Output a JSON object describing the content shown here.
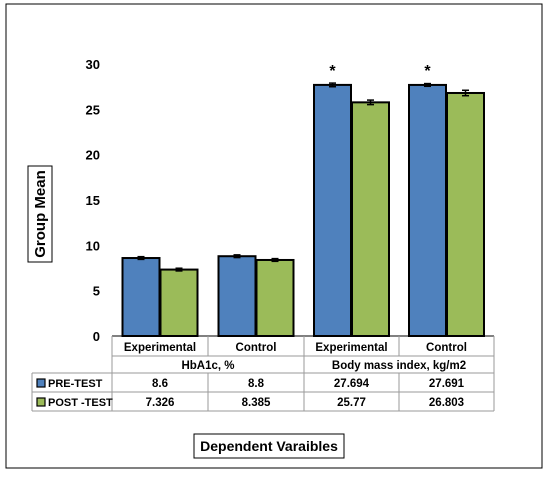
{
  "chart_data": {
    "type": "bar",
    "ylabel": "Group Mean",
    "xlabel": "Dependent Varaibles",
    "ylim": [
      0,
      30
    ],
    "yticks": [
      0,
      5,
      10,
      15,
      20,
      25,
      30
    ],
    "categories": [
      "Experimental",
      "Control",
      "Experimental",
      "Control"
    ],
    "groups": [
      {
        "label": "HbA1c, %",
        "span": [
          0,
          1
        ]
      },
      {
        "label": "Body mass index, kg/m2",
        "span": [
          2,
          3
        ]
      }
    ],
    "series": [
      {
        "name": "PRE-TEST",
        "values": [
          8.6,
          8.8,
          27.694,
          27.691
        ],
        "labels": [
          "8.6",
          "8.8",
          "27.694",
          "27.691"
        ],
        "color": "#4f81bd"
      },
      {
        "name": "POST -TEST",
        "values": [
          7.326,
          8.385,
          25.77,
          26.803
        ],
        "labels": [
          "7.326",
          "8.385",
          "25.77",
          "26.803"
        ],
        "color": "#9bbb59"
      }
    ],
    "error": {
      "PRE-TEST": [
        0.15,
        0.15,
        0.2,
        0.15
      ],
      "POST -TEST": [
        0.15,
        0.15,
        0.25,
        0.3
      ]
    },
    "annotations": [
      {
        "text": "*",
        "category_index": 2,
        "series": "PRE-TEST"
      },
      {
        "text": "*",
        "category_index": 3,
        "series": "PRE-TEST"
      }
    ],
    "data_table": true,
    "grid": false
  }
}
